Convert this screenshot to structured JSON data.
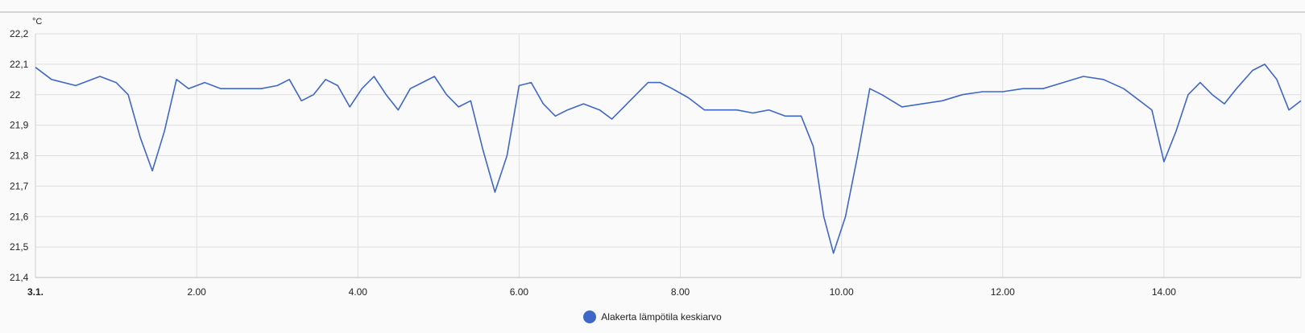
{
  "chart_data": {
    "type": "line",
    "unit": "°C",
    "ylim": [
      21.4,
      22.2
    ],
    "y_ticks": [
      "22,2",
      "22,1",
      "22",
      "21,9",
      "21,8",
      "21,7",
      "21,6",
      "21,5",
      "21,4"
    ],
    "xlim": [
      0,
      15.7
    ],
    "x_ticks": [
      {
        "x": 0,
        "label": "3.1.",
        "bold": true
      },
      {
        "x": 2,
        "label": "2.00"
      },
      {
        "x": 4,
        "label": "4.00"
      },
      {
        "x": 6,
        "label": "6.00"
      },
      {
        "x": 8,
        "label": "8.00"
      },
      {
        "x": 10,
        "label": "10.00"
      },
      {
        "x": 12,
        "label": "12.00"
      },
      {
        "x": 14,
        "label": "14.00"
      }
    ],
    "grid": true,
    "legend_position": "bottom",
    "series": [
      {
        "name": "Alakerta lämpötila keskiarvo",
        "color": "#3f67c6",
        "x": [
          0,
          0.2,
          0.5,
          0.8,
          1.0,
          1.15,
          1.3,
          1.45,
          1.6,
          1.75,
          1.9,
          2.1,
          2.3,
          2.55,
          2.8,
          3.0,
          3.15,
          3.3,
          3.45,
          3.6,
          3.75,
          3.9,
          4.05,
          4.2,
          4.35,
          4.5,
          4.65,
          4.8,
          4.95,
          5.1,
          5.25,
          5.4,
          5.55,
          5.7,
          5.85,
          6.0,
          6.15,
          6.3,
          6.45,
          6.6,
          6.8,
          7.0,
          7.15,
          7.3,
          7.45,
          7.6,
          7.75,
          7.9,
          8.1,
          8.3,
          8.5,
          8.7,
          8.9,
          9.1,
          9.3,
          9.5,
          9.65,
          9.78,
          9.9,
          10.05,
          10.2,
          10.35,
          10.5,
          10.75,
          11.0,
          11.25,
          11.5,
          11.75,
          12.0,
          12.25,
          12.5,
          12.75,
          13.0,
          13.25,
          13.5,
          13.7,
          13.85,
          14.0,
          14.15,
          14.3,
          14.45,
          14.6,
          14.75,
          14.9,
          15.1,
          15.25,
          15.4,
          15.55,
          15.7
        ],
        "y": [
          22.09,
          22.05,
          22.03,
          22.06,
          22.04,
          22.0,
          21.86,
          21.75,
          21.88,
          22.05,
          22.02,
          22.04,
          22.02,
          22.02,
          22.02,
          22.03,
          22.05,
          21.98,
          22.0,
          22.05,
          22.03,
          21.96,
          22.02,
          22.06,
          22.0,
          21.95,
          22.02,
          22.04,
          22.06,
          22.0,
          21.96,
          21.98,
          21.82,
          21.68,
          21.8,
          22.03,
          22.04,
          21.97,
          21.93,
          21.95,
          21.97,
          21.95,
          21.92,
          21.96,
          22.0,
          22.04,
          22.04,
          22.02,
          21.99,
          21.95,
          21.95,
          21.95,
          21.94,
          21.95,
          21.93,
          21.93,
          21.83,
          21.6,
          21.48,
          21.6,
          21.8,
          22.02,
          22.0,
          21.96,
          21.97,
          21.98,
          22.0,
          22.01,
          22.01,
          22.02,
          22.02,
          22.04,
          22.06,
          22.05,
          22.02,
          21.98,
          21.95,
          21.78,
          21.88,
          22.0,
          22.04,
          22.0,
          21.97,
          22.02,
          22.08,
          22.1,
          22.05,
          21.95,
          21.98
        ]
      }
    ]
  }
}
